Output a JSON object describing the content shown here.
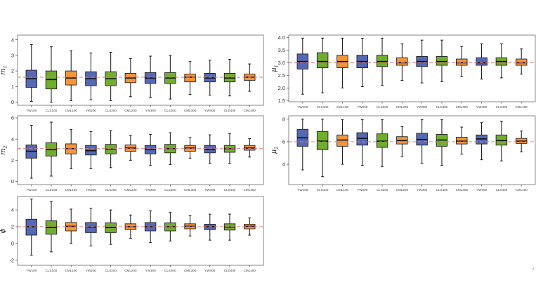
{
  "categories": [
    "YW100",
    "CLS100",
    "CML100",
    "YW200",
    "CLS200",
    "CML200",
    "YW300",
    "CLS300",
    "CML300",
    "YW400",
    "CLS400",
    "CML400"
  ],
  "method_colors": {
    "YW": "#5468b4",
    "CLS": "#6fae2e",
    "CML": "#f3953c"
  },
  "ref_color": "#e0787a",
  "page_number": "4",
  "chart_data": [
    {
      "id": "m1",
      "type": "box",
      "ylabel": "m",
      "ylabel_sub": "1",
      "ylim": [
        -0.2,
        4.3
      ],
      "yticks": [
        0,
        1,
        2,
        3,
        4
      ],
      "ref": 1.6,
      "boxes": [
        {
          "min": 0.05,
          "q1": 0.95,
          "med": 1.5,
          "q3": 2.05,
          "max": 3.7
        },
        {
          "min": 0.0,
          "q1": 0.85,
          "med": 1.45,
          "q3": 2.0,
          "max": 3.55
        },
        {
          "min": 0.1,
          "q1": 1.1,
          "med": 1.55,
          "q3": 2.0,
          "max": 3.3
        },
        {
          "min": 0.15,
          "q1": 1.05,
          "med": 1.5,
          "q3": 1.95,
          "max": 3.15
        },
        {
          "min": 0.1,
          "q1": 1.05,
          "med": 1.5,
          "q3": 1.95,
          "max": 3.2
        },
        {
          "min": 0.35,
          "q1": 1.25,
          "med": 1.55,
          "q3": 1.85,
          "max": 2.8
        },
        {
          "min": 0.3,
          "q1": 1.2,
          "med": 1.55,
          "q3": 1.9,
          "max": 2.95
        },
        {
          "min": 0.2,
          "q1": 1.2,
          "med": 1.55,
          "q3": 1.9,
          "max": 3.0
        },
        {
          "min": 0.5,
          "q1": 1.3,
          "med": 1.6,
          "q3": 1.8,
          "max": 2.6
        },
        {
          "min": 0.45,
          "q1": 1.3,
          "med": 1.55,
          "q3": 1.85,
          "max": 2.7
        },
        {
          "min": 0.4,
          "q1": 1.3,
          "med": 1.55,
          "q3": 1.85,
          "max": 2.75
        },
        {
          "min": 0.7,
          "q1": 1.4,
          "med": 1.6,
          "q3": 1.8,
          "max": 2.45
        }
      ]
    },
    {
      "id": "mu1",
      "type": "box",
      "ylabel": "μ",
      "ylabel_sub": "1",
      "ylim": [
        1.45,
        4.1
      ],
      "yticks": [
        1.5,
        2.0,
        2.5,
        3.0,
        3.5,
        4.0
      ],
      "ytick_labels": [
        "1.5",
        "2.0",
        "2.5",
        "3.0",
        "3.5",
        "4.0"
      ],
      "ref": 3.0,
      "boxes": [
        {
          "min": 1.75,
          "q1": 2.75,
          "med": 3.05,
          "q3": 3.35,
          "max": 3.98
        },
        {
          "min": 1.8,
          "q1": 2.8,
          "med": 3.05,
          "q3": 3.4,
          "max": 3.98
        },
        {
          "min": 2.0,
          "q1": 2.8,
          "med": 3.05,
          "q3": 3.3,
          "max": 3.98
        },
        {
          "min": 2.05,
          "q1": 2.8,
          "med": 3.05,
          "q3": 3.3,
          "max": 3.97
        },
        {
          "min": 2.1,
          "q1": 2.85,
          "med": 3.05,
          "q3": 3.3,
          "max": 3.98
        },
        {
          "min": 2.3,
          "q1": 2.9,
          "med": 3.0,
          "q3": 3.2,
          "max": 3.75
        },
        {
          "min": 2.2,
          "q1": 2.85,
          "med": 3.05,
          "q3": 3.25,
          "max": 3.9
        },
        {
          "min": 2.25,
          "q1": 2.9,
          "med": 3.05,
          "q3": 3.25,
          "max": 3.9
        },
        {
          "min": 2.45,
          "q1": 2.9,
          "med": 3.0,
          "q3": 3.15,
          "max": 3.65
        },
        {
          "min": 2.35,
          "q1": 2.9,
          "med": 3.0,
          "q3": 3.2,
          "max": 3.75
        },
        {
          "min": 2.4,
          "q1": 2.9,
          "med": 3.05,
          "q3": 3.2,
          "max": 3.75
        },
        {
          "min": 2.55,
          "q1": 2.9,
          "med": 3.0,
          "q3": 3.15,
          "max": 3.55
        }
      ]
    },
    {
      "id": "m2",
      "type": "box",
      "ylabel": "m",
      "ylabel_sub": "2",
      "ylim": [
        -0.3,
        6.2
      ],
      "yticks": [
        0,
        2,
        4,
        6
      ],
      "ref": 3.1,
      "boxes": [
        {
          "min": 0.3,
          "q1": 2.2,
          "med": 2.85,
          "q3": 3.45,
          "max": 5.3
        },
        {
          "min": 0.5,
          "q1": 2.4,
          "med": 3.0,
          "q3": 3.65,
          "max": 5.6
        },
        {
          "min": 1.2,
          "q1": 2.6,
          "med": 3.1,
          "q3": 3.55,
          "max": 4.9
        },
        {
          "min": 1.2,
          "q1": 2.5,
          "med": 2.9,
          "q3": 3.4,
          "max": 4.7
        },
        {
          "min": 1.3,
          "q1": 2.6,
          "med": 3.05,
          "q3": 3.5,
          "max": 4.8
        },
        {
          "min": 2.0,
          "q1": 2.85,
          "med": 3.15,
          "q3": 3.45,
          "max": 4.35
        },
        {
          "min": 1.5,
          "q1": 2.6,
          "med": 3.0,
          "q3": 3.4,
          "max": 4.45
        },
        {
          "min": 1.6,
          "q1": 2.7,
          "med": 3.1,
          "q3": 3.5,
          "max": 4.6
        },
        {
          "min": 2.2,
          "q1": 2.85,
          "med": 3.15,
          "q3": 3.4,
          "max": 4.15
        },
        {
          "min": 1.7,
          "q1": 2.7,
          "med": 3.0,
          "q3": 3.4,
          "max": 4.4
        },
        {
          "min": 1.7,
          "q1": 2.75,
          "med": 3.1,
          "q3": 3.4,
          "max": 4.5
        },
        {
          "min": 2.3,
          "q1": 2.95,
          "med": 3.15,
          "q3": 3.4,
          "max": 4.05
        }
      ]
    },
    {
      "id": "mu2",
      "type": "box",
      "ylabel": "μ",
      "ylabel_sub": "2",
      "ylim": [
        2.2,
        8.3
      ],
      "yticks": [
        4,
        6,
        8
      ],
      "ref": 6.0,
      "boxes": [
        {
          "min": 3.5,
          "q1": 5.6,
          "med": 6.35,
          "q3": 7.1,
          "max": 8.0
        },
        {
          "min": 2.9,
          "q1": 5.3,
          "med": 6.05,
          "q3": 6.9,
          "max": 8.0
        },
        {
          "min": 4.0,
          "q1": 5.6,
          "med": 6.15,
          "q3": 6.6,
          "max": 7.95
        },
        {
          "min": 3.9,
          "q1": 5.7,
          "med": 6.3,
          "q3": 6.8,
          "max": 7.95
        },
        {
          "min": 3.8,
          "q1": 5.5,
          "med": 6.05,
          "q3": 6.7,
          "max": 7.95
        },
        {
          "min": 4.7,
          "q1": 5.8,
          "med": 6.1,
          "q3": 6.45,
          "max": 7.35
        },
        {
          "min": 4.1,
          "q1": 5.7,
          "med": 6.2,
          "q3": 6.75,
          "max": 7.95
        },
        {
          "min": 3.9,
          "q1": 5.6,
          "med": 6.15,
          "q3": 6.65,
          "max": 7.95
        },
        {
          "min": 4.9,
          "q1": 5.8,
          "med": 6.05,
          "q3": 6.4,
          "max": 7.3
        },
        {
          "min": 4.4,
          "q1": 5.8,
          "med": 6.25,
          "q3": 6.6,
          "max": 7.7
        },
        {
          "min": 4.3,
          "q1": 5.7,
          "med": 6.1,
          "q3": 6.6,
          "max": 7.8
        },
        {
          "min": 5.1,
          "q1": 5.85,
          "med": 6.05,
          "q3": 6.3,
          "max": 6.95
        }
      ]
    },
    {
      "id": "phi",
      "type": "box",
      "ylabel": "ϕ",
      "ylabel_sub": "",
      "ylim": [
        -2.6,
        5.6
      ],
      "yticks": [
        -2,
        0,
        2,
        4
      ],
      "ref": 2.0,
      "boxes": [
        {
          "min": -1.4,
          "q1": 1.0,
          "med": 2.0,
          "q3": 2.9,
          "max": 5.3
        },
        {
          "min": -1.0,
          "q1": 1.1,
          "med": 1.9,
          "q3": 2.7,
          "max": 5.0
        },
        {
          "min": 0.0,
          "q1": 1.5,
          "med": 2.05,
          "q3": 2.5,
          "max": 4.1
        },
        {
          "min": -0.3,
          "q1": 1.3,
          "med": 1.95,
          "q3": 2.5,
          "max": 4.2
        },
        {
          "min": -0.1,
          "q1": 1.3,
          "med": 1.9,
          "q3": 2.45,
          "max": 4.0
        },
        {
          "min": 0.6,
          "q1": 1.65,
          "med": 2.0,
          "q3": 2.35,
          "max": 3.4
        },
        {
          "min": 0.1,
          "q1": 1.5,
          "med": 2.0,
          "q3": 2.5,
          "max": 3.9
        },
        {
          "min": 0.3,
          "q1": 1.5,
          "med": 2.0,
          "q3": 2.45,
          "max": 3.7
        },
        {
          "min": 0.9,
          "q1": 1.75,
          "med": 2.05,
          "q3": 2.35,
          "max": 3.3
        },
        {
          "min": 0.4,
          "q1": 1.65,
          "med": 2.0,
          "q3": 2.3,
          "max": 3.5
        },
        {
          "min": 0.4,
          "q1": 1.6,
          "med": 1.95,
          "q3": 2.35,
          "max": 3.5
        },
        {
          "min": 1.0,
          "q1": 1.75,
          "med": 2.05,
          "q3": 2.3,
          "max": 3.05
        }
      ]
    }
  ]
}
